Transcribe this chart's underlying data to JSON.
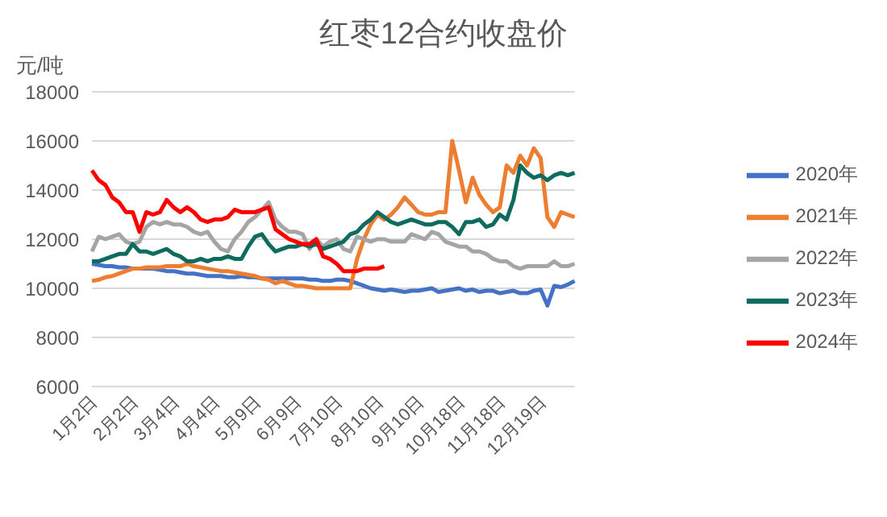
{
  "chart_data": {
    "type": "line",
    "title": "红枣12合约收盘价",
    "ylabel": "元/吨",
    "categories": [
      "1月2日",
      null,
      null,
      null,
      null,
      null,
      "2月2日",
      null,
      null,
      null,
      null,
      null,
      "3月4日",
      null,
      null,
      null,
      null,
      null,
      "4月4日",
      null,
      null,
      null,
      null,
      null,
      "5月9日",
      null,
      null,
      null,
      null,
      null,
      "6月9日",
      null,
      null,
      null,
      null,
      null,
      "7月10日",
      null,
      null,
      null,
      null,
      null,
      "8月10日",
      null,
      null,
      null,
      null,
      null,
      "9月10日",
      null,
      null,
      null,
      null,
      null,
      "10月18日",
      null,
      null,
      null,
      null,
      null,
      "11月18日",
      null,
      null,
      null,
      null,
      null,
      "12月19日",
      null,
      null,
      null,
      null,
      null
    ],
    "series": [
      {
        "name": "2020年",
        "color": "#4472c4",
        "values": [
          11000,
          10950,
          10900,
          10900,
          10850,
          10850,
          10800,
          10800,
          10800,
          10800,
          10750,
          10700,
          10700,
          10650,
          10600,
          10600,
          10550,
          10500,
          10500,
          10500,
          10450,
          10450,
          10500,
          10450,
          10450,
          10400,
          10400,
          10400,
          10400,
          10400,
          10400,
          10400,
          10350,
          10350,
          10300,
          10300,
          10350,
          10350,
          10300,
          10200,
          10100,
          10000,
          9950,
          9900,
          9950,
          9900,
          9850,
          9900,
          9900,
          9950,
          10000,
          9850,
          9900,
          9950,
          10000,
          9900,
          9950,
          9850,
          9900,
          9900,
          9800,
          9850,
          9900,
          9800,
          9800,
          9900,
          9950,
          9300,
          10100,
          10050,
          10150,
          10300
        ]
      },
      {
        "name": "2021年",
        "color": "#ed7d31",
        "values": [
          10300,
          10350,
          10450,
          10500,
          10600,
          10700,
          10800,
          10800,
          10850,
          10850,
          10850,
          10900,
          10900,
          10900,
          11000,
          10900,
          10850,
          10800,
          10750,
          10700,
          10700,
          10650,
          10600,
          10550,
          10500,
          10400,
          10350,
          10200,
          10300,
          10200,
          10100,
          10100,
          10050,
          10000,
          10000,
          10000,
          10000,
          10000,
          10000,
          11200,
          12000,
          12600,
          13000,
          12800,
          13000,
          13300,
          13700,
          13400,
          13100,
          13000,
          13000,
          13100,
          13100,
          16000,
          14800,
          13500,
          14500,
          13800,
          13400,
          13100,
          13300,
          15000,
          14700,
          15400,
          15000,
          15700,
          15300,
          12900,
          12500,
          13100,
          13000,
          12900
        ]
      },
      {
        "name": "2022年",
        "color": "#a5a5a5",
        "values": [
          11500,
          12100,
          12000,
          12100,
          12200,
          11900,
          11800,
          11900,
          12500,
          12700,
          12600,
          12700,
          12600,
          12600,
          12500,
          12300,
          12200,
          12300,
          11900,
          11600,
          11500,
          12000,
          12300,
          12700,
          12900,
          13200,
          13500,
          12800,
          12500,
          12300,
          12300,
          12200,
          11600,
          12000,
          11700,
          11900,
          12000,
          11600,
          11500,
          12100,
          12000,
          11900,
          12000,
          12000,
          11900,
          11900,
          11900,
          12200,
          12100,
          12000,
          12300,
          12200,
          11900,
          11800,
          11700,
          11700,
          11500,
          11500,
          11400,
          11200,
          11100,
          11100,
          10900,
          10800,
          10900,
          10900,
          10900,
          10900,
          11100,
          10900,
          10900,
          11000
        ]
      },
      {
        "name": "2023年",
        "color": "#0e6b5e",
        "values": [
          11100,
          11100,
          11200,
          11300,
          11400,
          11400,
          11800,
          11500,
          11500,
          11400,
          11500,
          11600,
          11400,
          11300,
          11100,
          11100,
          11200,
          11100,
          11200,
          11200,
          11300,
          11200,
          11200,
          11700,
          12100,
          12200,
          11800,
          11500,
          11600,
          11700,
          11700,
          11800,
          11700,
          11800,
          11600,
          11700,
          11800,
          11900,
          12200,
          12300,
          12600,
          12800,
          13100,
          12900,
          12700,
          12600,
          12700,
          12800,
          12700,
          12600,
          12600,
          12700,
          12700,
          12500,
          12200,
          12700,
          12700,
          12800,
          12500,
          12600,
          13000,
          12800,
          13600,
          15000,
          14700,
          14500,
          14600,
          14400,
          14600,
          14700,
          14600,
          14700
        ]
      },
      {
        "name": "2024年",
        "color": "#ff0000",
        "values": [
          14800,
          14400,
          14200,
          13700,
          13500,
          13100,
          13100,
          12300,
          13100,
          13000,
          13100,
          13600,
          13300,
          13100,
          13300,
          13100,
          12800,
          12700,
          12800,
          12800,
          12900,
          13200,
          13100,
          13100,
          13100,
          13200,
          13300,
          12400,
          12200,
          12000,
          11900,
          11800,
          11800,
          12000,
          11300,
          11200,
          11000,
          10700,
          10700,
          10700,
          10800,
          10800,
          10800,
          10900,
          null,
          null,
          null,
          null,
          null,
          null,
          null,
          null,
          null,
          null,
          null,
          null,
          null,
          null,
          null,
          null,
          null,
          null,
          null,
          null,
          null,
          null,
          null,
          null,
          null,
          null,
          null,
          null
        ]
      }
    ],
    "ylim": [
      6000,
      18000
    ],
    "yticks": [
      6000,
      8000,
      10000,
      12000,
      14000,
      16000,
      18000
    ],
    "grid": "y",
    "legend": "right",
    "marker": "none",
    "line_style": "solid"
  }
}
